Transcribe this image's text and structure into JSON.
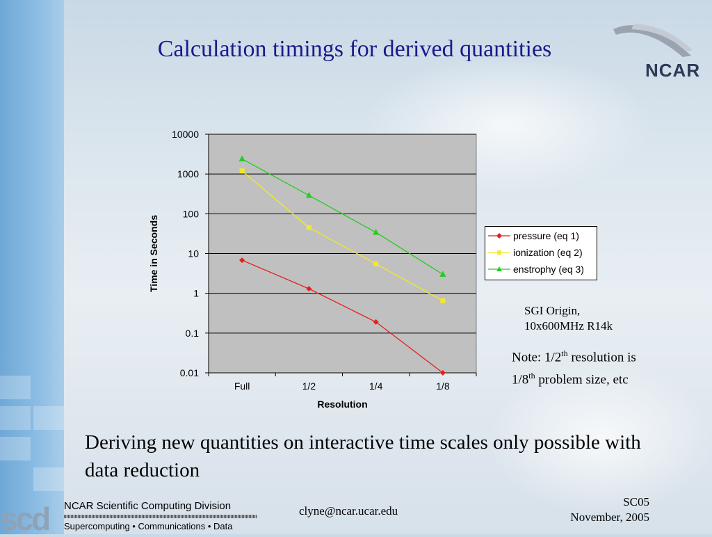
{
  "slide": {
    "title": "Calculation timings for derived quantities",
    "logo_text": "NCAR",
    "note_machine_line1": "SGI Origin,",
    "note_machine_line2": "10x600MHz R14k",
    "note_resolution_a": "Note: 1/2",
    "note_resolution_sup1": "th",
    "note_resolution_b": " resolution is",
    "note_resolution_c": "1/8",
    "note_resolution_sup2": "th",
    "note_resolution_d": " problem size, etc",
    "main_text": "Deriving new quantities on interactive time scales only possible with data reduction",
    "footer": {
      "scd": "scd",
      "division": "NCAR Scientific Computing Division",
      "tagline": "Supercomputing • Communications • Data",
      "email": "clyne@ncar.ucar.edu",
      "event": "SC05",
      "date": "November, 2005"
    }
  },
  "chart_data": {
    "type": "line",
    "title": "",
    "xlabel": "Resolution",
    "ylabel": "Time in Seconds",
    "yscale": "log",
    "ylim": [
      0.01,
      10000
    ],
    "yticks": [
      "10000",
      "1000",
      "100",
      "10",
      "1",
      "0.1",
      "0.01"
    ],
    "categories": [
      "Full",
      "1/2",
      "1/4",
      "1/8"
    ],
    "grid": true,
    "legend_position": "right",
    "series": [
      {
        "name": "pressure (eq 1)",
        "color": "#e02020",
        "marker": "diamond",
        "values": [
          6.8,
          1.3,
          0.19,
          0.01
        ]
      },
      {
        "name": "ionization (eq 2)",
        "color": "#f2ea28",
        "marker": "square",
        "values": [
          1200,
          45,
          5.5,
          0.65
        ]
      },
      {
        "name": "enstrophy (eq 3)",
        "color": "#22cc22",
        "marker": "triangle",
        "values": [
          2400,
          290,
          34,
          3
        ]
      }
    ]
  }
}
